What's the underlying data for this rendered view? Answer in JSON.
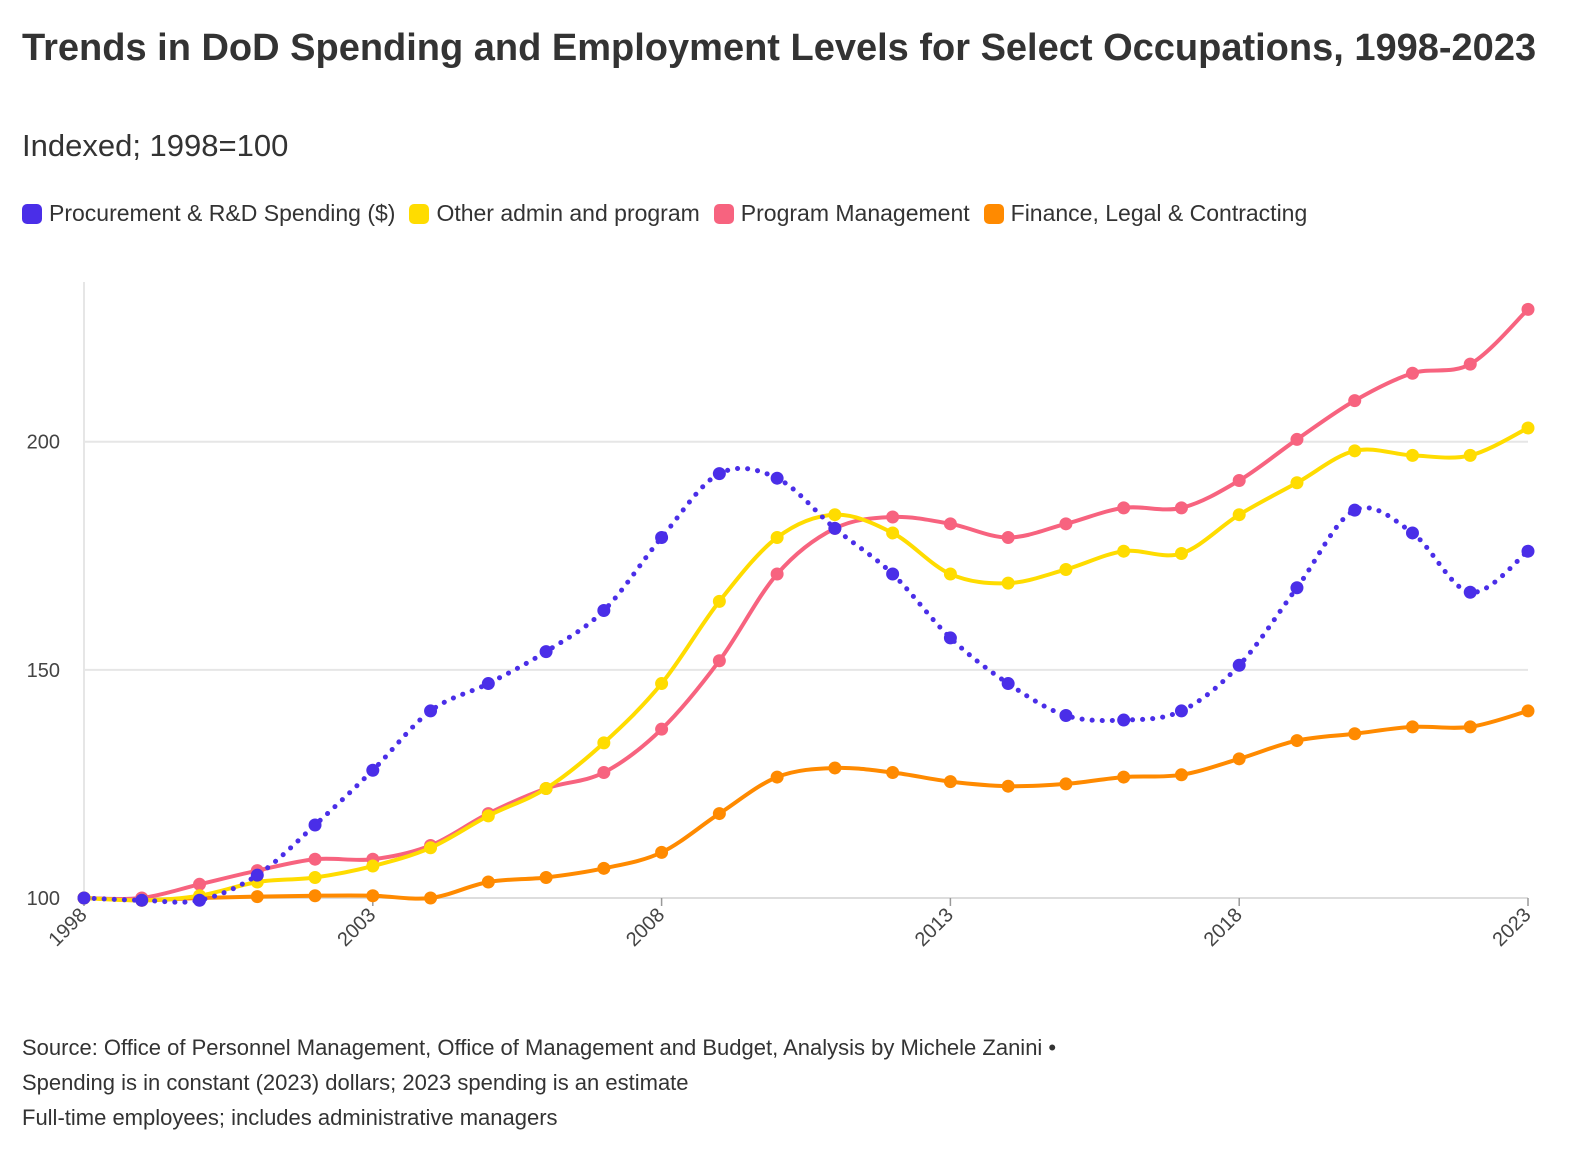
{
  "title": "Trends in DoD Spending and Employment Levels for Select Occupations, 1998-2023",
  "subtitle": "Indexed; 1998=100",
  "legend": [
    {
      "label": "Procurement & R&D Spending ($)",
      "color": "#4a2ee8"
    },
    {
      "label": "Other admin and program",
      "color": "#ffdc00"
    },
    {
      "label": "Program Management",
      "color": "#f7637f"
    },
    {
      "label": "Finance, Legal & Contracting",
      "color": "#ff8a00"
    }
  ],
  "footer": {
    "line1": "Source: Office of Personnel Management, Office of Management and Budget, Analysis by Michele Zanini •",
    "line2": "Spending is in constant (2023) dollars; 2023 spending is an estimate",
    "line3": "Full-time employees; includes administrative managers"
  },
  "chart_data": {
    "type": "line",
    "x": [
      1998,
      1999,
      2000,
      2001,
      2002,
      2003,
      2004,
      2005,
      2006,
      2007,
      2008,
      2009,
      2010,
      2011,
      2012,
      2013,
      2014,
      2015,
      2016,
      2017,
      2018,
      2019,
      2020,
      2021,
      2022,
      2023
    ],
    "xticks": [
      "1998",
      "2003",
      "2008",
      "2013",
      "2018",
      "2023"
    ],
    "yticks": [
      "100",
      "150",
      "200"
    ],
    "ylim": [
      100,
      235
    ],
    "grid": true,
    "legend_position": "top-left",
    "series": [
      {
        "name": "Procurement & R&D Spending ($)",
        "color": "#4a2ee8",
        "style": "dotted",
        "values": [
          100,
          99.5,
          99.5,
          105,
          116,
          128,
          141,
          147,
          154,
          163,
          179,
          193,
          192,
          181,
          171,
          157,
          147,
          140,
          139,
          141,
          151,
          168,
          185,
          180,
          167,
          176
        ]
      },
      {
        "name": "Other admin and program",
        "color": "#ffdc00",
        "style": "solid",
        "values": [
          100,
          99.5,
          100.5,
          103.5,
          104.5,
          107,
          111,
          118,
          124,
          134,
          147,
          165,
          179,
          184,
          180,
          171,
          169,
          172,
          176,
          175.5,
          184,
          191,
          198,
          197,
          197,
          203
        ]
      },
      {
        "name": "Program Management",
        "color": "#f7637f",
        "style": "solid",
        "values": [
          100,
          100,
          103,
          106,
          108.5,
          108.5,
          111.5,
          118.5,
          124,
          127.5,
          137,
          152,
          171,
          181,
          183.5,
          182,
          179,
          182,
          185.5,
          185.5,
          191.5,
          200.5,
          209,
          215,
          217,
          229
        ]
      },
      {
        "name": "Finance, Legal & Contracting",
        "color": "#ff8a00",
        "style": "solid",
        "values": [
          100,
          99.5,
          100,
          100.3,
          100.5,
          100.5,
          100,
          103.5,
          104.5,
          106.5,
          110,
          118.5,
          126.5,
          128.5,
          127.5,
          125.5,
          124.5,
          125,
          126.5,
          127,
          130.5,
          134.5,
          136,
          137.5,
          137.5,
          141
        ]
      }
    ]
  }
}
